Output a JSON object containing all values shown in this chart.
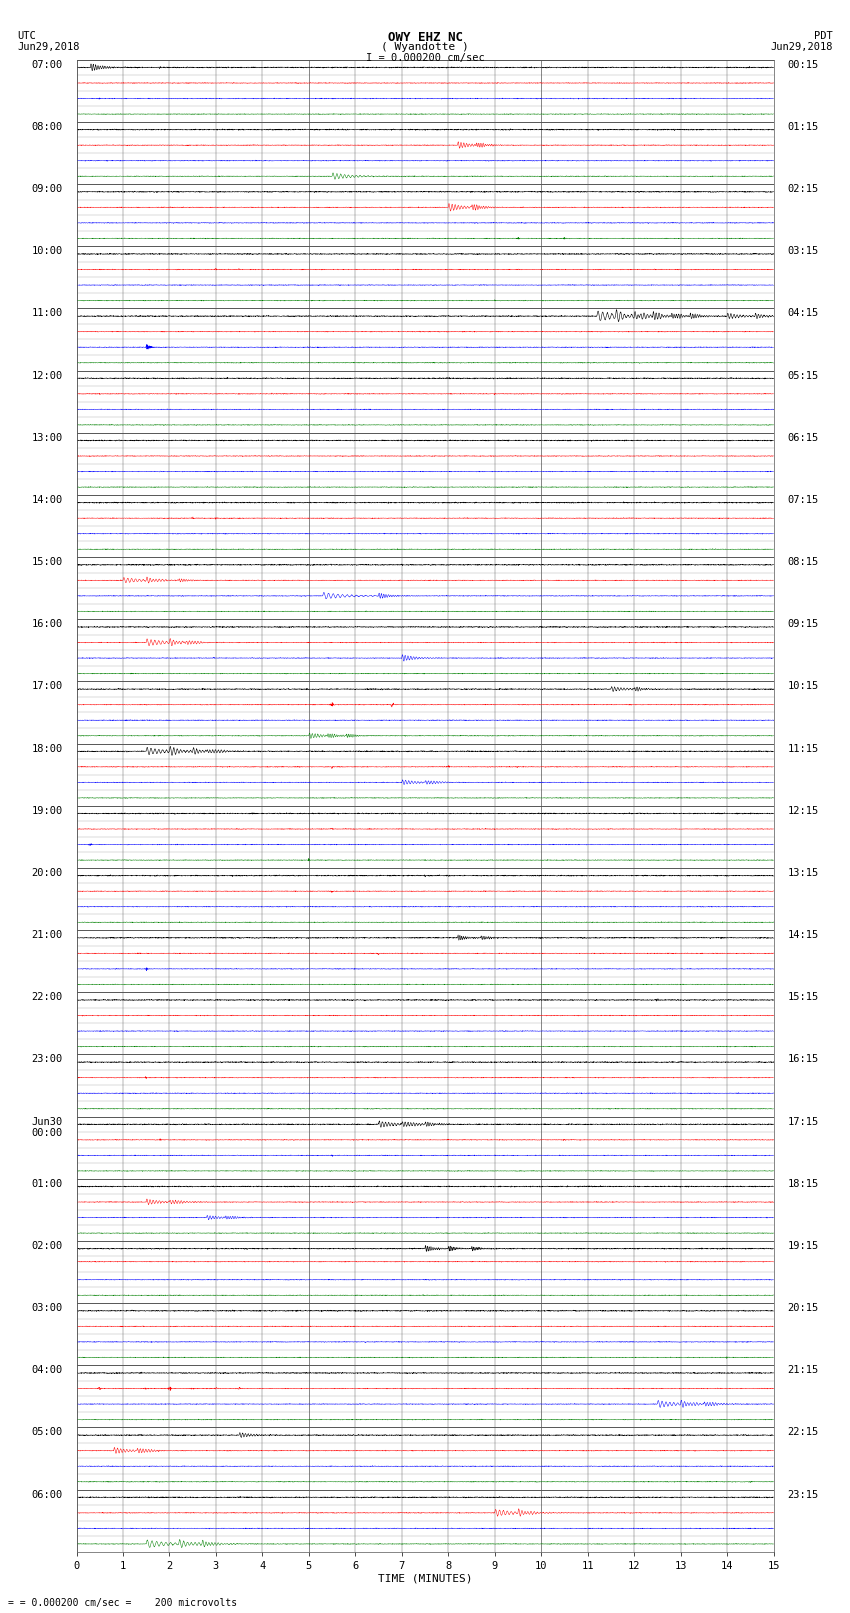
{
  "title_line1": "OWY EHZ NC",
  "title_line2": "( Wyandotte )",
  "title_scale": "I = 0.000200 cm/sec",
  "left_label_top": "UTC",
  "left_label_date": "Jun29,2018",
  "right_label_top": "PDT",
  "right_label_date": "Jun29,2018",
  "bottom_label": "TIME (MINUTES)",
  "footnote": "= 0.000200 cm/sec =    200 microvolts",
  "utc_times": [
    "07:00",
    "08:00",
    "09:00",
    "10:00",
    "11:00",
    "12:00",
    "13:00",
    "14:00",
    "15:00",
    "16:00",
    "17:00",
    "18:00",
    "19:00",
    "20:00",
    "21:00",
    "22:00",
    "23:00",
    "Jun30\n00:00",
    "01:00",
    "02:00",
    "03:00",
    "04:00",
    "05:00",
    "06:00"
  ],
  "pdt_times": [
    "00:15",
    "01:15",
    "02:15",
    "03:15",
    "04:15",
    "05:15",
    "06:15",
    "07:15",
    "08:15",
    "09:15",
    "10:15",
    "11:15",
    "12:15",
    "13:15",
    "14:15",
    "15:15",
    "16:15",
    "17:15",
    "18:15",
    "19:15",
    "20:15",
    "21:15",
    "22:15",
    "23:15"
  ],
  "n_hours": 24,
  "subrows_per_hour": 4,
  "x_min": 0,
  "x_max": 15,
  "bg_color": "#ffffff",
  "grid_color": "#555555",
  "subgrid_color": "#aaaaaa",
  "font_size_labels": 7.5,
  "font_size_title": 9,
  "seed": 42
}
